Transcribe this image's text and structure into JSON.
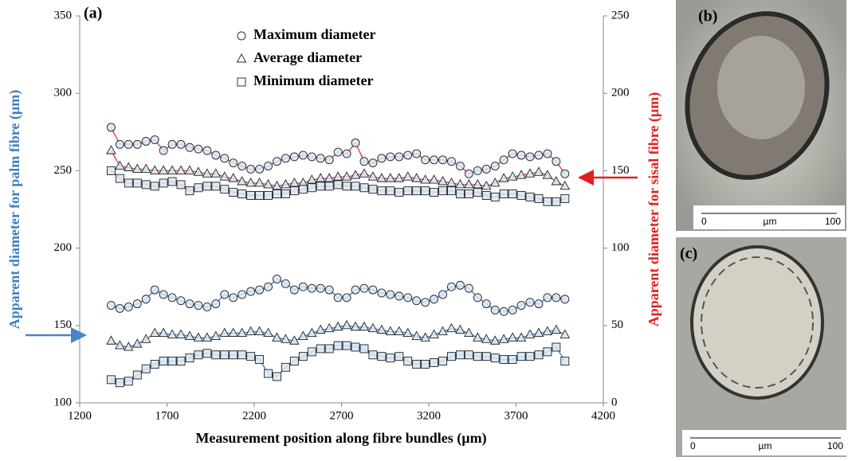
{
  "chart_data": {
    "type": "line",
    "panel_label": "(a)",
    "x_label": "Measurement position along fibre bundles (µm)",
    "y_label": "Apparent diameter for palm fibre (µm)",
    "y2_label": "Apparent diameter for sisal fibre (µm)",
    "xlim": [
      1200,
      4200
    ],
    "xticks": [
      1200,
      1700,
      2200,
      2700,
      3200,
      3700,
      4200
    ],
    "ylim": [
      100,
      350
    ],
    "yticks": [
      100,
      150,
      200,
      250,
      300,
      350
    ],
    "y2lim": [
      0,
      250
    ],
    "y2ticks": [
      0,
      50,
      100,
      150,
      200,
      250
    ],
    "x": [
      1380,
      1430,
      1480,
      1530,
      1580,
      1630,
      1680,
      1730,
      1780,
      1830,
      1880,
      1930,
      1980,
      2030,
      2080,
      2130,
      2180,
      2230,
      2280,
      2330,
      2380,
      2430,
      2480,
      2530,
      2580,
      2630,
      2680,
      2730,
      2780,
      2830,
      2880,
      2930,
      2980,
      3030,
      3080,
      3130,
      3180,
      3230,
      3280,
      3330,
      3380,
      3430,
      3480,
      3530,
      3580,
      3630,
      3680,
      3730,
      3780,
      3830,
      3880,
      3930,
      3980
    ],
    "series": [
      {
        "name": "Maximum diameter",
        "marker": "circle",
        "color": "#4a86c5",
        "axis": "y",
        "values": [
          163,
          161,
          162,
          164,
          167,
          173,
          170,
          168,
          166,
          164,
          163,
          162,
          164,
          170,
          168,
          170,
          172,
          173,
          175,
          180,
          177,
          173,
          175,
          174,
          174,
          173,
          168,
          168,
          173,
          174,
          173,
          171,
          170,
          169,
          168,
          166,
          165,
          167,
          170,
          175,
          176,
          174,
          168,
          164,
          160,
          159,
          160,
          163,
          165,
          164,
          168,
          168,
          167
        ]
      },
      {
        "name": "Average diameter",
        "marker": "triangle",
        "color": "#4a86c5",
        "axis": "y",
        "values": [
          140,
          137,
          136,
          138,
          141,
          145,
          145,
          144,
          144,
          143,
          142,
          142,
          143,
          145,
          145,
          145,
          146,
          146,
          145,
          142,
          141,
          140,
          143,
          145,
          147,
          148,
          149,
          150,
          149,
          149,
          148,
          147,
          146,
          146,
          145,
          143,
          142,
          144,
          146,
          148,
          147,
          145,
          142,
          141,
          140,
          141,
          142,
          142,
          144,
          145,
          146,
          147,
          144
        ]
      },
      {
        "name": "Minimum diameter",
        "marker": "square",
        "color": "#4a86c5",
        "axis": "y",
        "values": [
          115,
          113,
          114,
          118,
          122,
          125,
          127,
          127,
          127,
          129,
          131,
          132,
          131,
          131,
          131,
          131,
          130,
          128,
          119,
          117,
          123,
          127,
          130,
          133,
          135,
          135,
          137,
          137,
          136,
          135,
          131,
          130,
          129,
          130,
          127,
          125,
          125,
          126,
          127,
          130,
          131,
          131,
          130,
          130,
          129,
          128,
          128,
          130,
          130,
          131,
          133,
          136,
          127
        ]
      },
      {
        "name": "Maximum diameter",
        "marker": "circle",
        "color": "#e05050",
        "axis": "y2",
        "values": [
          178,
          167,
          167,
          167,
          169,
          170,
          163,
          167,
          167,
          165,
          164,
          163,
          160,
          158,
          155,
          153,
          151,
          151,
          153,
          156,
          158,
          159,
          160,
          159,
          158,
          157,
          162,
          161,
          168,
          156,
          155,
          158,
          159,
          159,
          160,
          161,
          157,
          157,
          157,
          156,
          153,
          148,
          150,
          151,
          153,
          157,
          161,
          160,
          159,
          160,
          161,
          156,
          148
        ]
      },
      {
        "name": "Average diameter",
        "marker": "triangle",
        "color": "#e05050",
        "axis": "y2",
        "values": [
          163,
          153,
          152,
          151,
          151,
          150,
          150,
          150,
          150,
          150,
          149,
          148,
          148,
          146,
          145,
          143,
          142,
          142,
          141,
          140,
          141,
          142,
          142,
          144,
          145,
          145,
          146,
          146,
          147,
          148,
          146,
          145,
          145,
          145,
          146,
          145,
          144,
          144,
          143,
          142,
          141,
          141,
          141,
          140,
          142,
          145,
          146,
          147,
          148,
          149,
          147,
          143,
          140
        ]
      },
      {
        "name": "Minimum diameter",
        "marker": "square",
        "color": "#e05050",
        "axis": "y2",
        "values": [
          150,
          145,
          142,
          142,
          141,
          140,
          142,
          143,
          141,
          137,
          139,
          140,
          140,
          138,
          136,
          135,
          134,
          134,
          134,
          135,
          135,
          137,
          138,
          139,
          140,
          140,
          141,
          140,
          140,
          139,
          138,
          137,
          137,
          136,
          137,
          137,
          137,
          136,
          137,
          137,
          135,
          135,
          136,
          134,
          133,
          135,
          135,
          134,
          133,
          132,
          130,
          130,
          132
        ]
      }
    ]
  },
  "images": [
    {
      "label": "(b)",
      "scale": [
        "0",
        "µm",
        "100"
      ]
    },
    {
      "label": "(c)",
      "scale": [
        "0",
        "µm",
        "100"
      ]
    }
  ]
}
